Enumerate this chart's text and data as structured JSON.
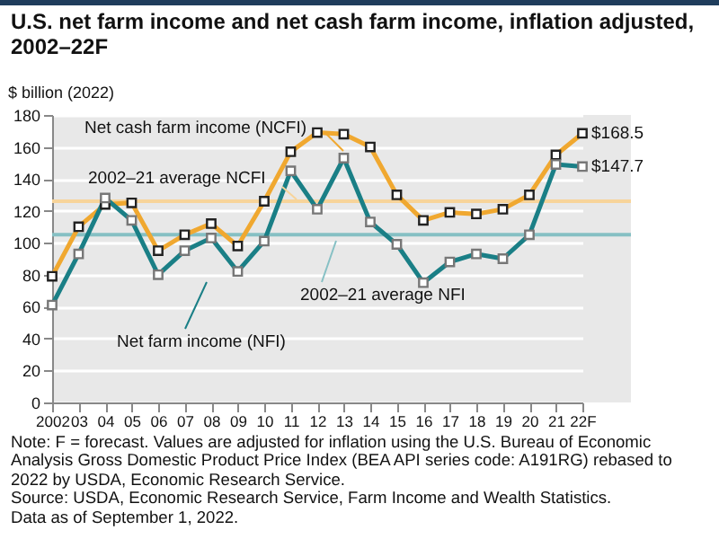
{
  "chart_data": {
    "type": "line",
    "title": "U.S. net farm income and net cash farm income, inflation adjusted, 2002–22F",
    "ylabel": "$ billion (2022)",
    "categories": [
      "2002",
      "03",
      "04",
      "05",
      "06",
      "07",
      "08",
      "09",
      "10",
      "11",
      "12",
      "13",
      "14",
      "15",
      "16",
      "17",
      "18",
      "19",
      "20",
      "21",
      "22F"
    ],
    "series": [
      {
        "name": "Net cash farm income (NCFI)",
        "color": "#f0a830",
        "values": [
          79,
          110,
          124,
          125,
          95,
          105,
          112,
          98,
          126,
          157,
          169,
          168,
          160,
          130,
          114,
          119,
          118,
          121,
          130,
          155,
          168.5
        ],
        "value_labels": [
          null,
          null,
          null,
          null,
          null,
          null,
          null,
          null,
          null,
          null,
          null,
          null,
          null,
          null,
          null,
          null,
          null,
          null,
          null,
          null,
          "$168.5"
        ]
      },
      {
        "name": "Net farm income (NFI)",
        "color": "#1a7f86",
        "values": [
          61,
          93,
          128,
          114,
          80,
          95,
          103,
          82,
          101,
          145,
          121,
          153,
          113,
          99,
          75,
          88,
          93,
          90,
          105,
          149,
          147.7
        ],
        "value_labels": [
          null,
          null,
          null,
          null,
          null,
          null,
          null,
          null,
          null,
          null,
          null,
          null,
          null,
          null,
          null,
          null,
          null,
          null,
          null,
          null,
          "$147.7"
        ]
      }
    ],
    "ylim": [
      0,
      180
    ],
    "yticks": [
      0,
      20,
      40,
      60,
      80,
      100,
      120,
      140,
      160,
      180
    ],
    "ref_lines": [
      {
        "axis": "y",
        "value": 126,
        "label": "2002–21 average NCFI",
        "color": "#f7d49a"
      },
      {
        "axis": "y",
        "value": 105,
        "label": "2002–21 average NFI",
        "color": "#86c0c4"
      }
    ],
    "grid": "y",
    "marker": "square",
    "line_style": "solid",
    "legend": false,
    "annotations": [
      "Note: F = forecast. Values are adjusted for inflation using the U.S. Bureau of Economic Analysis Gross Domestic Product Price Index (BEA API series code: A191RG) rebased to 2022 by USDA, Economic Research Service.",
      "Source: USDA, Economic Research Service, Farm Income and Wealth Statistics.",
      "Data as of September 1, 2022."
    ]
  }
}
